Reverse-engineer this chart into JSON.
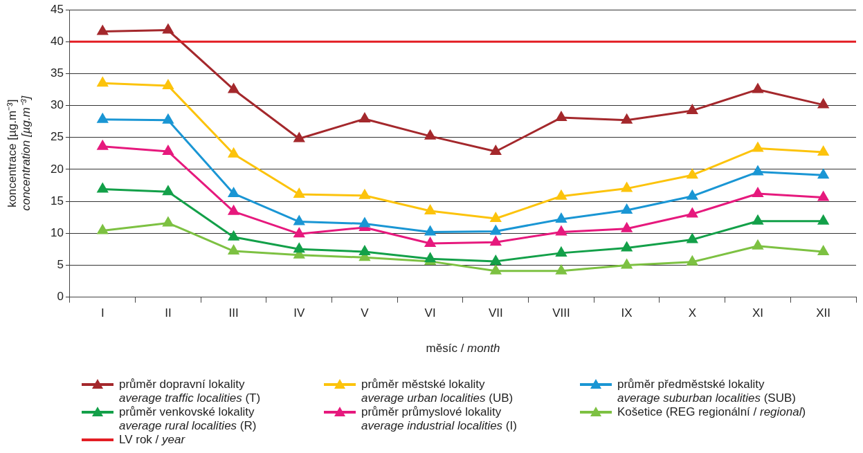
{
  "chart_data": {
    "type": "line",
    "xlabel": "měsíc / month",
    "ylabel": "koncentrace [µg.m⁻³]\nconcentration [µg.m⁻³]",
    "categories": [
      "I",
      "II",
      "III",
      "IV",
      "V",
      "VI",
      "VII",
      "VIII",
      "IX",
      "X",
      "XI",
      "XII"
    ],
    "series": [
      {
        "name": "průměr dopravní lokality\naverage traffic localities (T)",
        "color": "#a4282c",
        "values": [
          41.6,
          41.8,
          32.5,
          24.8,
          27.9,
          25.2,
          22.8,
          28.1,
          27.7,
          29.2,
          32.5,
          30.1
        ]
      },
      {
        "name": "průměr městské lokality\naverage urban localities (UB)",
        "color": "#fcc30c",
        "values": [
          33.5,
          33.1,
          22.4,
          16.1,
          15.9,
          13.5,
          12.3,
          15.8,
          17.0,
          19.1,
          23.3,
          22.7
        ]
      },
      {
        "name": "průměr předměstské lokality\naverage suburban localities (SUB)",
        "color": "#1a96d4",
        "values": [
          27.8,
          27.7,
          16.2,
          11.8,
          11.5,
          10.2,
          10.3,
          12.2,
          13.6,
          15.8,
          19.6,
          19.1
        ]
      },
      {
        "name": "průměr venkovské lokality\naverage rural localities (R)",
        "color": "#13a049",
        "values": [
          16.9,
          16.5,
          9.4,
          7.5,
          7.1,
          6.0,
          5.6,
          6.9,
          7.7,
          9.0,
          11.9,
          11.9
        ]
      },
      {
        "name": "průměr průmyslové lokality\naverage industrial localities (I)",
        "color": "#e6197d",
        "values": [
          23.6,
          22.8,
          13.4,
          9.9,
          10.9,
          8.4,
          8.6,
          10.2,
          10.7,
          13.0,
          16.2,
          15.6
        ]
      },
      {
        "name": "Košetice (REG regionální / regional)",
        "color": "#7dc142",
        "values": [
          10.4,
          11.6,
          7.2,
          6.6,
          6.2,
          5.6,
          4.1,
          4.1,
          5.0,
          5.5,
          8.0,
          7.1
        ]
      }
    ],
    "ref_lines": [
      {
        "axis": "y",
        "value": 40,
        "label": "LV rok / year",
        "color": "#e31e24"
      }
    ],
    "ylim": [
      0,
      45
    ],
    "yticks": [
      0,
      5,
      10,
      15,
      20,
      25,
      30,
      35,
      40,
      45
    ],
    "grid": "y",
    "legend": "bottom",
    "marker": "triangle",
    "line_style": "solid"
  }
}
